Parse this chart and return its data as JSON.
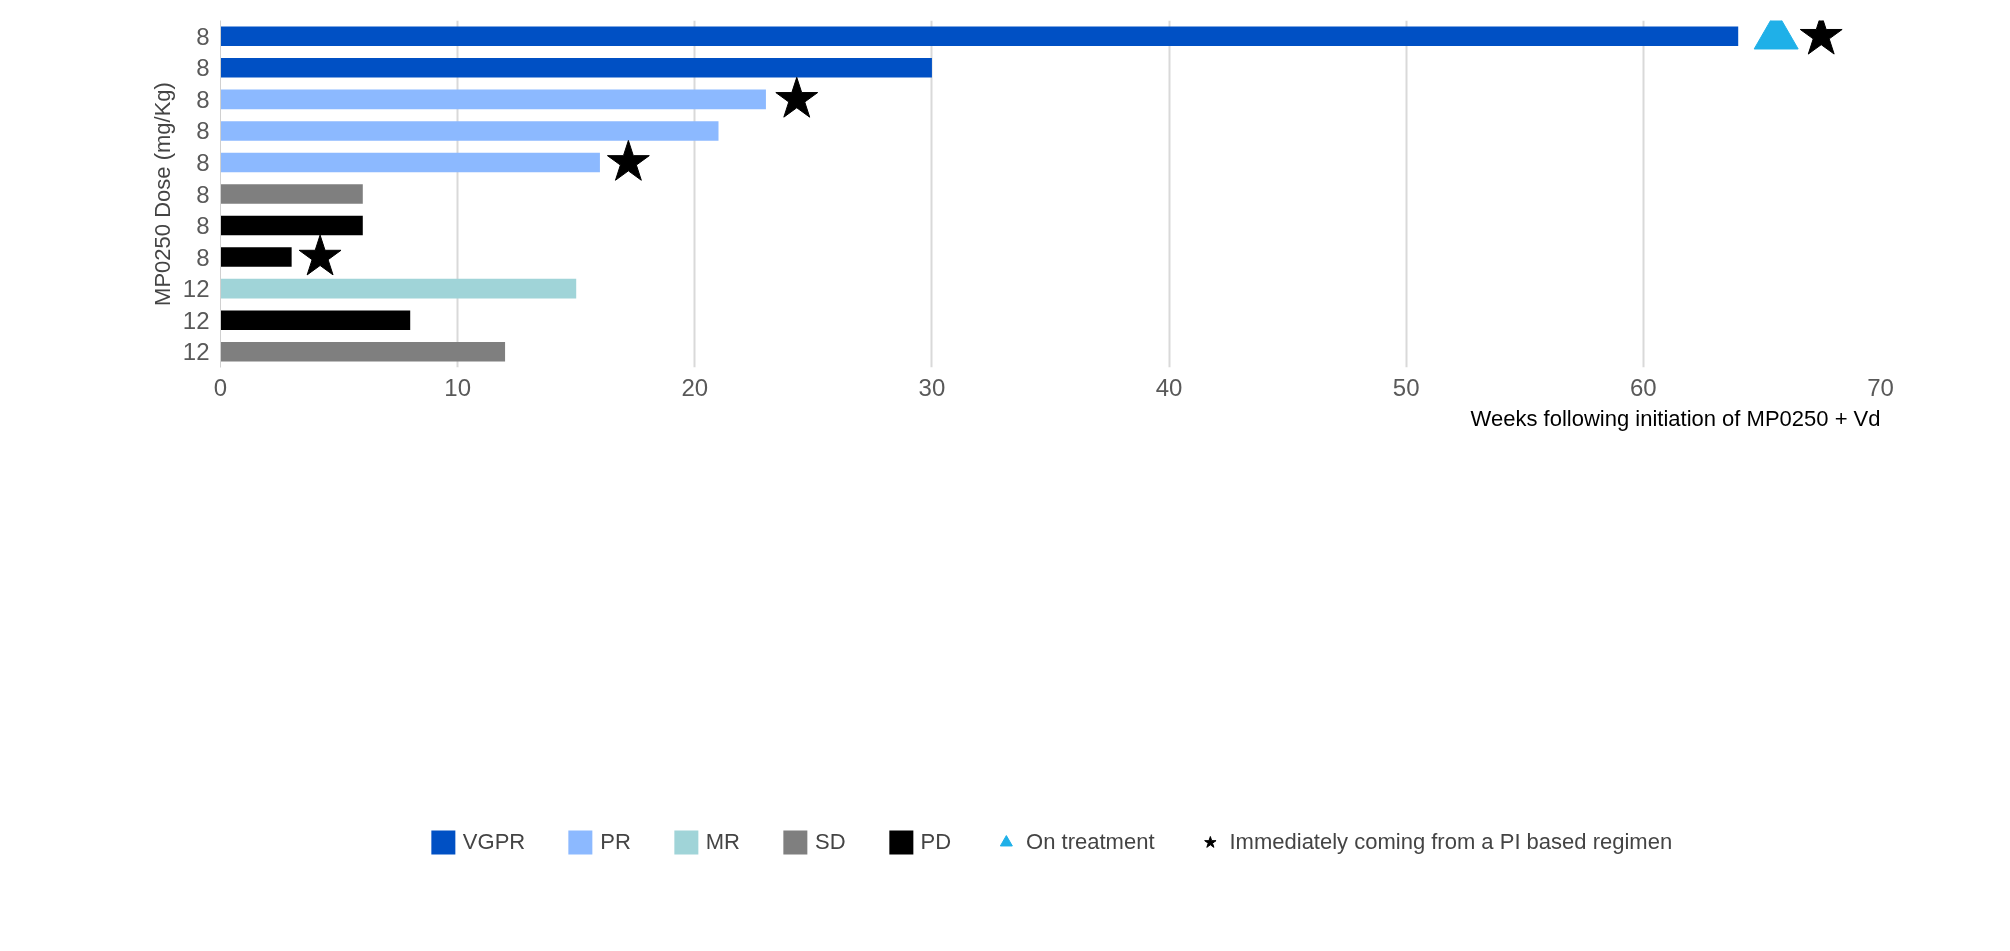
{
  "chart_data": {
    "type": "bar",
    "orientation": "horizontal",
    "xlabel": "Weeks following initiation of MP0250 + Vd",
    "ylabel": "MP0250 Dose (mg/Kg)",
    "categories": [
      "8",
      "8",
      "8",
      "8",
      "8",
      "8",
      "8",
      "8",
      "12",
      "12",
      "12"
    ],
    "series": [
      {
        "name": "VGPR",
        "color": "#0050c4",
        "values": [
          64,
          30,
          null,
          null,
          null,
          null,
          null,
          null,
          null,
          null,
          null
        ]
      },
      {
        "name": "PR",
        "color": "#8cb9ff",
        "values": [
          null,
          null,
          23,
          21,
          16,
          null,
          null,
          null,
          null,
          null,
          null
        ]
      },
      {
        "name": "MR",
        "color": "#a0d4d8",
        "values": [
          null,
          null,
          null,
          null,
          null,
          null,
          null,
          null,
          15,
          null,
          null
        ]
      },
      {
        "name": "SD",
        "color": "#7f7f7f",
        "values": [
          null,
          null,
          null,
          null,
          null,
          6,
          null,
          null,
          null,
          null,
          12
        ]
      },
      {
        "name": "PD",
        "color": "#000000",
        "values": [
          null,
          null,
          null,
          null,
          null,
          null,
          6,
          3,
          null,
          8,
          null
        ]
      },
      {
        "name": "On treatment",
        "type": "scatter",
        "marker": "triangle",
        "color": "#1fb0e8",
        "values": [
          65.6,
          null,
          null,
          null,
          null,
          null,
          null,
          null,
          null,
          null,
          null
        ]
      },
      {
        "name": "Immediately coming from a PI based regimen",
        "type": "scatter",
        "marker": "star",
        "color": "#000000",
        "values": [
          67.5,
          null,
          24.3,
          null,
          17.2,
          null,
          null,
          4.2,
          null,
          null,
          null
        ]
      }
    ],
    "xlim": [
      0,
      70
    ],
    "xticks": [
      0,
      10,
      20,
      30,
      40,
      50,
      60,
      70
    ],
    "grid": "x",
    "legend": "bottom"
  }
}
